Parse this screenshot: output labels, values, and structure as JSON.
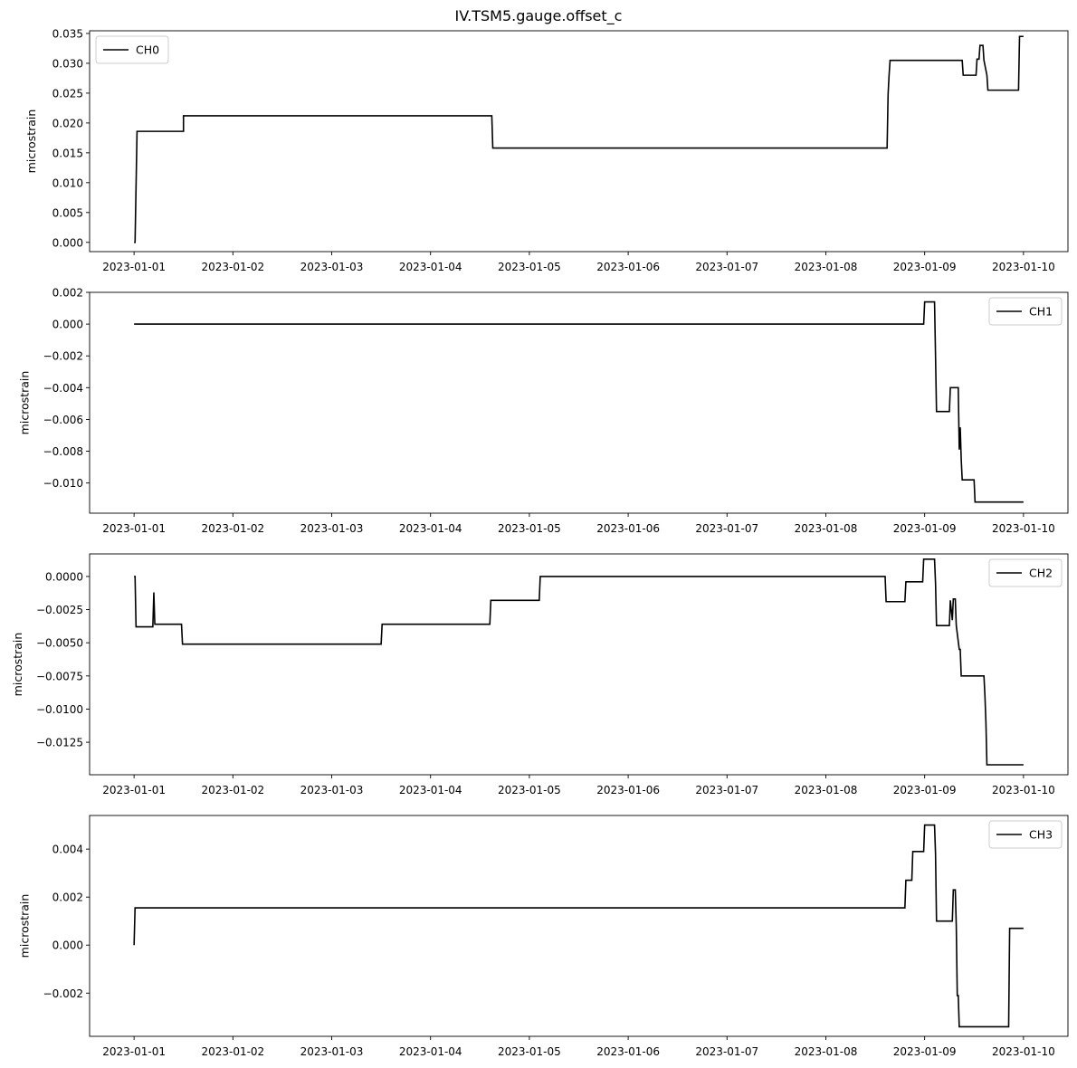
{
  "title": "IV.TSM5.gauge.offset_c",
  "chart_data": [
    {
      "type": "line",
      "series": [
        {
          "name": "CH0",
          "color": "#000000"
        }
      ],
      "ylabel": "microstrain",
      "xlim": [
        -0.45,
        9.45
      ],
      "ylim": [
        -0.00155,
        0.03545
      ],
      "xticks": [
        "2023-01-01",
        "2023-01-02",
        "2023-01-03",
        "2023-01-04",
        "2023-01-05",
        "2023-01-06",
        "2023-01-07",
        "2023-01-08",
        "2023-01-09",
        "2023-01-10"
      ],
      "yticks": [
        0.0,
        0.005,
        0.01,
        0.015,
        0.02,
        0.025,
        0.03,
        0.035
      ],
      "ytick_labels": [
        "0.000",
        "0.005",
        "0.010",
        "0.015",
        "0.020",
        "0.025",
        "0.030",
        "0.035"
      ],
      "legend": "upper-left",
      "grid": false,
      "x": [
        0,
        0.01,
        0.03,
        0.04,
        0.5,
        0.5,
        3.62,
        3.63,
        7.62,
        7.63,
        7.64,
        7.65,
        8.38,
        8.39,
        8.52,
        8.53,
        8.55,
        8.56,
        8.59,
        8.6,
        8.63,
        8.64,
        8.95,
        8.96,
        9.0
      ],
      "y": [
        0.0,
        0.0,
        0.0186,
        0.0186,
        0.0186,
        0.0212,
        0.0212,
        0.0158,
        0.0158,
        0.0248,
        0.028,
        0.0305,
        0.0305,
        0.028,
        0.028,
        0.0307,
        0.0307,
        0.033,
        0.033,
        0.0305,
        0.028,
        0.0255,
        0.0255,
        0.0345,
        0.0345
      ]
    },
    {
      "type": "line",
      "series": [
        {
          "name": "CH1",
          "color": "#000000"
        }
      ],
      "ylabel": "microstrain",
      "xlim": [
        -0.45,
        9.45
      ],
      "ylim": [
        -0.0119,
        0.002
      ],
      "xticks": [
        "2023-01-01",
        "2023-01-02",
        "2023-01-03",
        "2023-01-04",
        "2023-01-05",
        "2023-01-06",
        "2023-01-07",
        "2023-01-08",
        "2023-01-09",
        "2023-01-10"
      ],
      "yticks": [
        -0.01,
        -0.008,
        -0.006,
        -0.004,
        -0.002,
        0.0,
        0.002
      ],
      "ytick_labels": [
        "−0.010",
        "−0.008",
        "−0.006",
        "−0.004",
        "−0.002",
        "0.000",
        "0.002"
      ],
      "legend": "upper-right",
      "grid": false,
      "x": [
        0,
        7.99,
        8.0,
        8.1,
        8.11,
        8.12,
        8.13,
        8.25,
        8.26,
        8.34,
        8.35,
        8.36,
        8.37,
        8.38,
        8.5,
        8.51,
        9.0
      ],
      "y": [
        0.0,
        0.0,
        0.0014,
        0.0014,
        -0.002,
        -0.0055,
        -0.0055,
        -0.0055,
        -0.004,
        -0.004,
        -0.0079,
        -0.0065,
        -0.0085,
        -0.0098,
        -0.0098,
        -0.0112,
        -0.0112
      ]
    },
    {
      "type": "line",
      "series": [
        {
          "name": "CH2",
          "color": "#000000"
        }
      ],
      "ylabel": "microstrain",
      "xlim": [
        -0.45,
        9.45
      ],
      "ylim": [
        -0.01495,
        0.0017
      ],
      "xticks": [
        "2023-01-01",
        "2023-01-02",
        "2023-01-03",
        "2023-01-04",
        "2023-01-05",
        "2023-01-06",
        "2023-01-07",
        "2023-01-08",
        "2023-01-09",
        "2023-01-10"
      ],
      "yticks": [
        -0.0125,
        -0.01,
        -0.0075,
        -0.005,
        -0.0025,
        0.0
      ],
      "ytick_labels": [
        "−0.0125",
        "−0.0100",
        "−0.0075",
        "−0.0050",
        "−0.0025",
        "0.0000"
      ],
      "legend": "upper-right",
      "grid": false,
      "x": [
        0,
        0.01,
        0.02,
        0.19,
        0.2,
        0.21,
        0.22,
        0.48,
        0.49,
        2.5,
        2.51,
        3.6,
        3.61,
        4.1,
        4.11,
        7.6,
        7.61,
        7.8,
        7.81,
        7.98,
        7.99,
        8.1,
        8.11,
        8.12,
        8.25,
        8.26,
        8.28,
        8.29,
        8.31,
        8.32,
        8.35,
        8.36,
        8.37,
        8.38,
        8.6,
        8.61,
        8.62,
        8.63,
        9.0
      ],
      "y": [
        0.0,
        0.0,
        -0.0038,
        -0.0038,
        -0.0012,
        -0.0036,
        -0.0036,
        -0.0036,
        -0.0051,
        -0.0051,
        -0.0036,
        -0.0036,
        -0.0018,
        -0.0018,
        0.0,
        0.0,
        -0.0019,
        -0.0019,
        -0.0004,
        -0.0004,
        0.0013,
        0.0013,
        -0.0005,
        -0.0037,
        -0.0037,
        -0.0018,
        -0.0033,
        -0.0017,
        -0.0017,
        -0.0037,
        -0.0055,
        -0.0055,
        -0.0075,
        -0.0075,
        -0.0075,
        -0.009,
        -0.011,
        -0.0142,
        -0.0142
      ]
    },
    {
      "type": "line",
      "series": [
        {
          "name": "CH3",
          "color": "#000000"
        }
      ],
      "ylabel": "microstrain",
      "xlim": [
        -0.45,
        9.45
      ],
      "ylim": [
        -0.0038,
        0.0054
      ],
      "xticks": [
        "2023-01-01",
        "2023-01-02",
        "2023-01-03",
        "2023-01-04",
        "2023-01-05",
        "2023-01-06",
        "2023-01-07",
        "2023-01-08",
        "2023-01-09",
        "2023-01-10"
      ],
      "yticks": [
        -0.002,
        0.0,
        0.002,
        0.004
      ],
      "ytick_labels": [
        "−0.002",
        "0.000",
        "0.002",
        "0.004"
      ],
      "legend": "upper-right",
      "grid": false,
      "x": [
        0,
        0.01,
        7.8,
        7.81,
        7.87,
        7.88,
        7.99,
        8.0,
        8.1,
        8.11,
        8.12,
        8.13,
        8.28,
        8.29,
        8.31,
        8.32,
        8.33,
        8.34,
        8.35,
        8.85,
        8.86,
        9.0
      ],
      "y": [
        0.0,
        0.00155,
        0.00155,
        0.0027,
        0.0027,
        0.0039,
        0.0039,
        0.005,
        0.005,
        0.0038,
        0.001,
        0.001,
        0.001,
        0.0023,
        0.0023,
        0.0008,
        -0.0021,
        -0.0021,
        -0.0034,
        -0.0034,
        0.0007,
        0.0007
      ]
    }
  ]
}
